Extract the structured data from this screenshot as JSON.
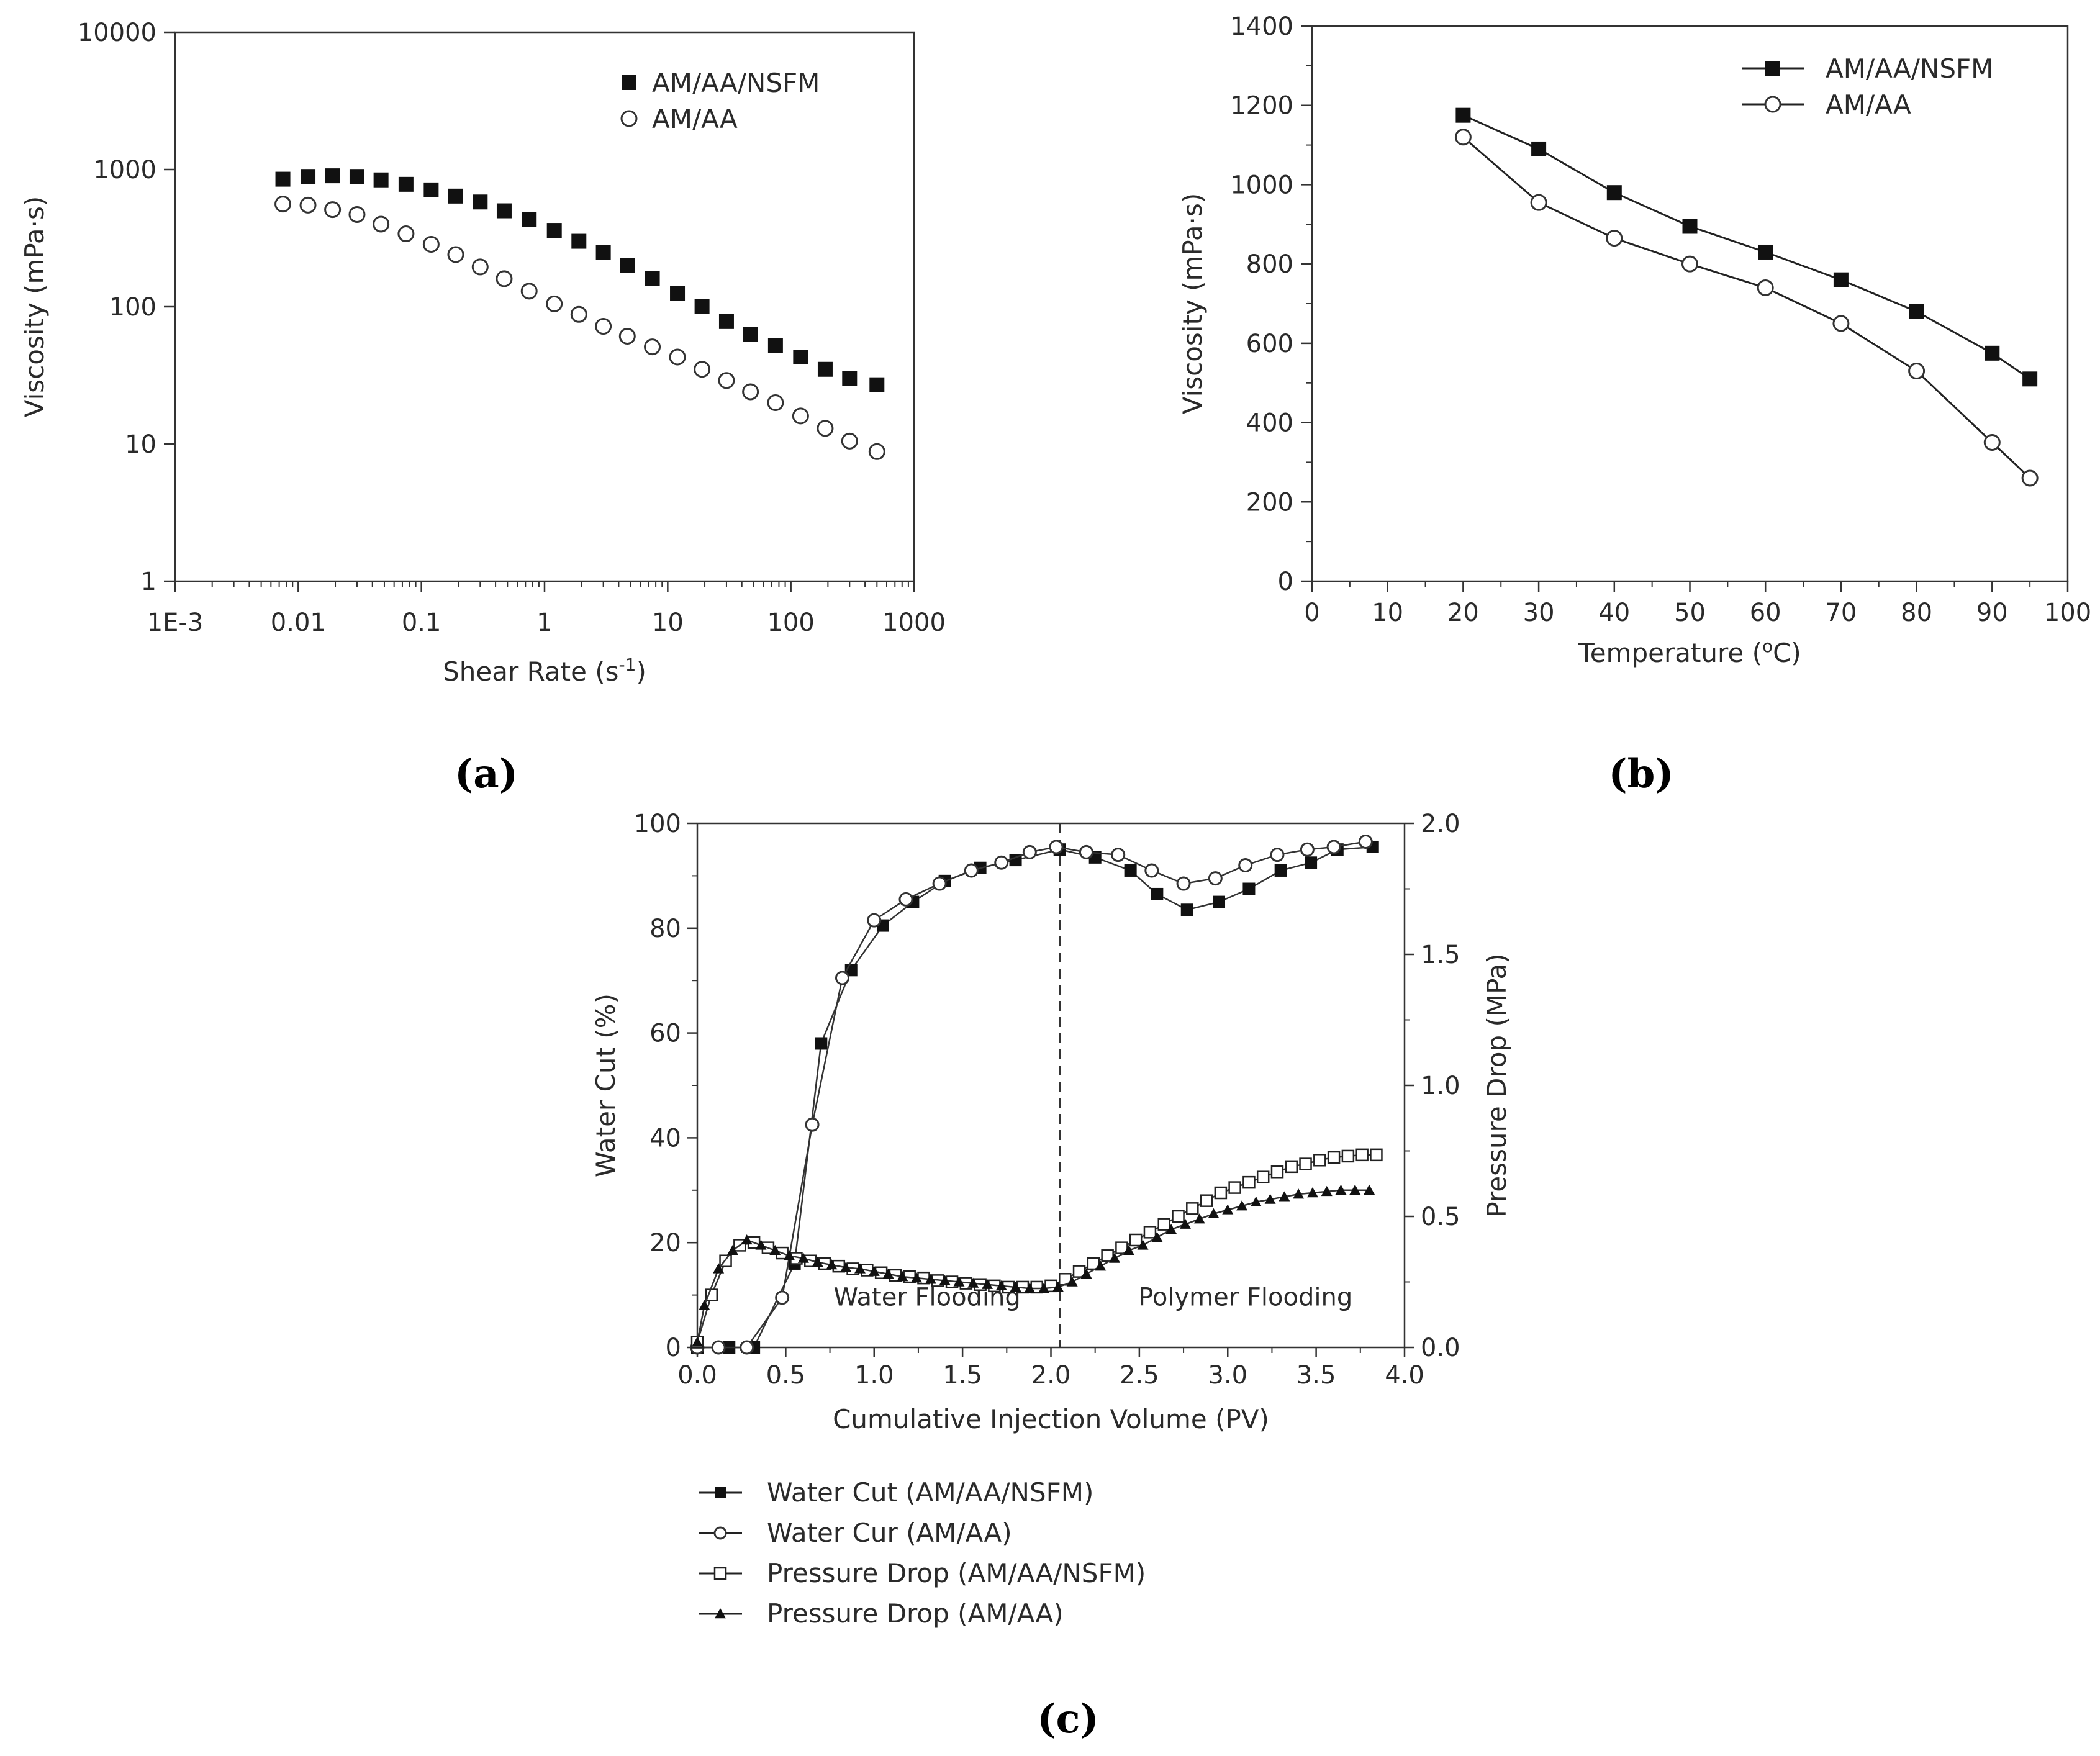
{
  "chart_data": [
    {
      "id": "a",
      "type": "scatter",
      "caption": "(a)",
      "xlabel": "Shear Rate (s",
      "xlabel_sup": "-1",
      "xlabel_end": ")",
      "ylabel": "Viscosity (mPa·s)",
      "xscale": "log",
      "yscale": "log",
      "xlim": [
        0.001,
        1000
      ],
      "ylim": [
        1,
        10000
      ],
      "xticks": [
        {
          "v": 0.001,
          "label": "1E-3"
        },
        {
          "v": 0.01,
          "label": "0.01"
        },
        {
          "v": 0.1,
          "label": "0.1"
        },
        {
          "v": 1,
          "label": "1"
        },
        {
          "v": 10,
          "label": "10"
        },
        {
          "v": 100,
          "label": "100"
        },
        {
          "v": 1000,
          "label": "1000"
        }
      ],
      "yticks": [
        {
          "v": 1,
          "label": "1"
        },
        {
          "v": 10,
          "label": "10"
        },
        {
          "v": 100,
          "label": "100"
        },
        {
          "v": 1000,
          "label": "1000"
        },
        {
          "v": 10000,
          "label": "10000"
        }
      ],
      "legend_position": "top-right",
      "x": [
        0.0075,
        0.012,
        0.019,
        0.03,
        0.047,
        0.075,
        0.12,
        0.19,
        0.3,
        0.47,
        0.75,
        1.2,
        1.9,
        3,
        4.7,
        7.5,
        12,
        19,
        30,
        47,
        75,
        120,
        190,
        300,
        500
      ],
      "series": [
        {
          "name": "AM/AA/NSFM",
          "marker": "filled-square",
          "values": [
            850,
            890,
            900,
            890,
            840,
            780,
            710,
            640,
            580,
            500,
            430,
            360,
            300,
            250,
            200,
            160,
            125,
            100,
            78,
            63,
            52,
            43,
            35,
            30,
            27
          ]
        },
        {
          "name": "AM/AA",
          "marker": "open-circle",
          "values": [
            560,
            550,
            510,
            470,
            400,
            340,
            285,
            240,
            195,
            160,
            130,
            105,
            88,
            72,
            61,
            51,
            43,
            35,
            29,
            24,
            20,
            16,
            13,
            10.5,
            8.8
          ]
        }
      ]
    },
    {
      "id": "b",
      "type": "line",
      "caption": "(b)",
      "xlabel": "Temperature (",
      "xlabel_sup": "o",
      "xlabel_end": "C)",
      "ylabel": "Viscosity (mPa·s)",
      "xlim": [
        0,
        100
      ],
      "ylim": [
        0,
        1400
      ],
      "xticks": [
        0,
        10,
        20,
        30,
        40,
        50,
        60,
        70,
        80,
        90,
        100
      ],
      "yticks": [
        0,
        200,
        400,
        600,
        800,
        1000,
        1200,
        1400
      ],
      "legend_position": "top-right",
      "x": [
        20,
        30,
        40,
        50,
        60,
        70,
        80,
        90,
        95
      ],
      "series": [
        {
          "name": "AM/AA/NSFM",
          "marker": "filled-square",
          "values": [
            1175,
            1090,
            980,
            895,
            830,
            760,
            680,
            575,
            510
          ]
        },
        {
          "name": "AM/AA",
          "marker": "open-circle",
          "values": [
            1120,
            955,
            865,
            800,
            740,
            650,
            530,
            350,
            260
          ]
        }
      ]
    },
    {
      "id": "c",
      "type": "line",
      "caption": "(c)",
      "xlabel": "Cumulative Injection Volume (PV)",
      "ylabel": "Water Cut (%)",
      "y2label": "Pressure Drop (MPa)",
      "xlim": [
        0,
        4
      ],
      "ylim": [
        0,
        100
      ],
      "y2lim": [
        0,
        2
      ],
      "xticks": [
        "0.0",
        "0.5",
        "1.0",
        "1.5",
        "2.0",
        "2.5",
        "3.0",
        "3.5",
        "4.0"
      ],
      "yticks": [
        0,
        20,
        40,
        60,
        80,
        100
      ],
      "y2ticks": [
        "0.0",
        "0.5",
        "1.0",
        "1.5",
        "2.0"
      ],
      "divider_x": 2.05,
      "regions": [
        {
          "label": "Water Flooding",
          "x": 1.3,
          "y": 8
        },
        {
          "label": "Polymer Flooding",
          "x": 3.1,
          "y": 8
        }
      ],
      "legend_position": "below",
      "series": [
        {
          "name": "Water Cut (AM/AA/NSFM)",
          "axis": "left",
          "marker": "filled-square",
          "x": [
            0,
            0.18,
            0.32,
            0.55,
            0.7,
            0.87,
            1.05,
            1.22,
            1.4,
            1.6,
            1.8,
            2.05,
            2.25,
            2.45,
            2.6,
            2.77,
            2.95,
            3.12,
            3.3,
            3.47,
            3.62,
            3.82
          ],
          "values": [
            0,
            0,
            0,
            16,
            58,
            72,
            80.5,
            85,
            89,
            91.5,
            93,
            95,
            93.5,
            91,
            86.5,
            83.5,
            85,
            87.5,
            91,
            92.5,
            95,
            95.5
          ]
        },
        {
          "name": "Water Cur (AM/AA)",
          "axis": "left",
          "marker": "open-circle",
          "x": [
            0,
            0.12,
            0.28,
            0.48,
            0.65,
            0.82,
            1.0,
            1.18,
            1.37,
            1.55,
            1.72,
            1.88,
            2.03,
            2.2,
            2.38,
            2.57,
            2.75,
            2.93,
            3.1,
            3.28,
            3.45,
            3.6,
            3.78
          ],
          "values": [
            0,
            0,
            0,
            9.5,
            42.5,
            70.5,
            81.5,
            85.5,
            88.5,
            91,
            92.5,
            94.5,
            95.5,
            94.5,
            94,
            91,
            88.5,
            89.5,
            92,
            94,
            95,
            95.5,
            96.5
          ]
        },
        {
          "name": "Pressure Drop (AM/AA/NSFM)",
          "axis": "right",
          "marker": "open-square",
          "x": [
            0,
            0.08,
            0.16,
            0.24,
            0.32,
            0.4,
            0.48,
            0.56,
            0.64,
            0.72,
            0.8,
            0.88,
            0.96,
            1.04,
            1.12,
            1.2,
            1.28,
            1.36,
            1.44,
            1.52,
            1.6,
            1.68,
            1.76,
            1.84,
            1.92,
            2.0,
            2.08,
            2.16,
            2.24,
            2.32,
            2.4,
            2.48,
            2.56,
            2.64,
            2.72,
            2.8,
            2.88,
            2.96,
            3.04,
            3.12,
            3.2,
            3.28,
            3.36,
            3.44,
            3.52,
            3.6,
            3.68,
            3.76,
            3.84
          ],
          "values": [
            0.02,
            0.2,
            0.33,
            0.39,
            0.4,
            0.38,
            0.36,
            0.34,
            0.33,
            0.32,
            0.31,
            0.3,
            0.295,
            0.285,
            0.275,
            0.27,
            0.265,
            0.255,
            0.25,
            0.245,
            0.24,
            0.235,
            0.23,
            0.23,
            0.23,
            0.235,
            0.26,
            0.29,
            0.32,
            0.35,
            0.38,
            0.41,
            0.44,
            0.47,
            0.5,
            0.53,
            0.56,
            0.59,
            0.61,
            0.63,
            0.65,
            0.67,
            0.69,
            0.7,
            0.715,
            0.725,
            0.73,
            0.735,
            0.735
          ]
        },
        {
          "name": "Pressure Drop (AM/AA)",
          "axis": "right",
          "marker": "filled-triangle",
          "x": [
            0,
            0.04,
            0.12,
            0.2,
            0.28,
            0.36,
            0.44,
            0.52,
            0.6,
            0.68,
            0.76,
            0.84,
            0.92,
            1.0,
            1.08,
            1.16,
            1.24,
            1.32,
            1.4,
            1.48,
            1.56,
            1.64,
            1.72,
            1.8,
            1.88,
            1.96,
            2.04,
            2.12,
            2.2,
            2.28,
            2.36,
            2.44,
            2.52,
            2.6,
            2.68,
            2.76,
            2.84,
            2.92,
            3.0,
            3.08,
            3.16,
            3.24,
            3.32,
            3.4,
            3.48,
            3.56,
            3.64,
            3.72,
            3.8
          ],
          "values": [
            0.02,
            0.16,
            0.3,
            0.37,
            0.41,
            0.39,
            0.37,
            0.35,
            0.34,
            0.325,
            0.315,
            0.305,
            0.3,
            0.29,
            0.28,
            0.27,
            0.265,
            0.26,
            0.255,
            0.25,
            0.245,
            0.24,
            0.235,
            0.23,
            0.225,
            0.225,
            0.23,
            0.25,
            0.28,
            0.31,
            0.34,
            0.37,
            0.39,
            0.42,
            0.45,
            0.47,
            0.49,
            0.51,
            0.525,
            0.54,
            0.555,
            0.565,
            0.575,
            0.585,
            0.59,
            0.595,
            0.6,
            0.6,
            0.6
          ]
        }
      ]
    }
  ]
}
